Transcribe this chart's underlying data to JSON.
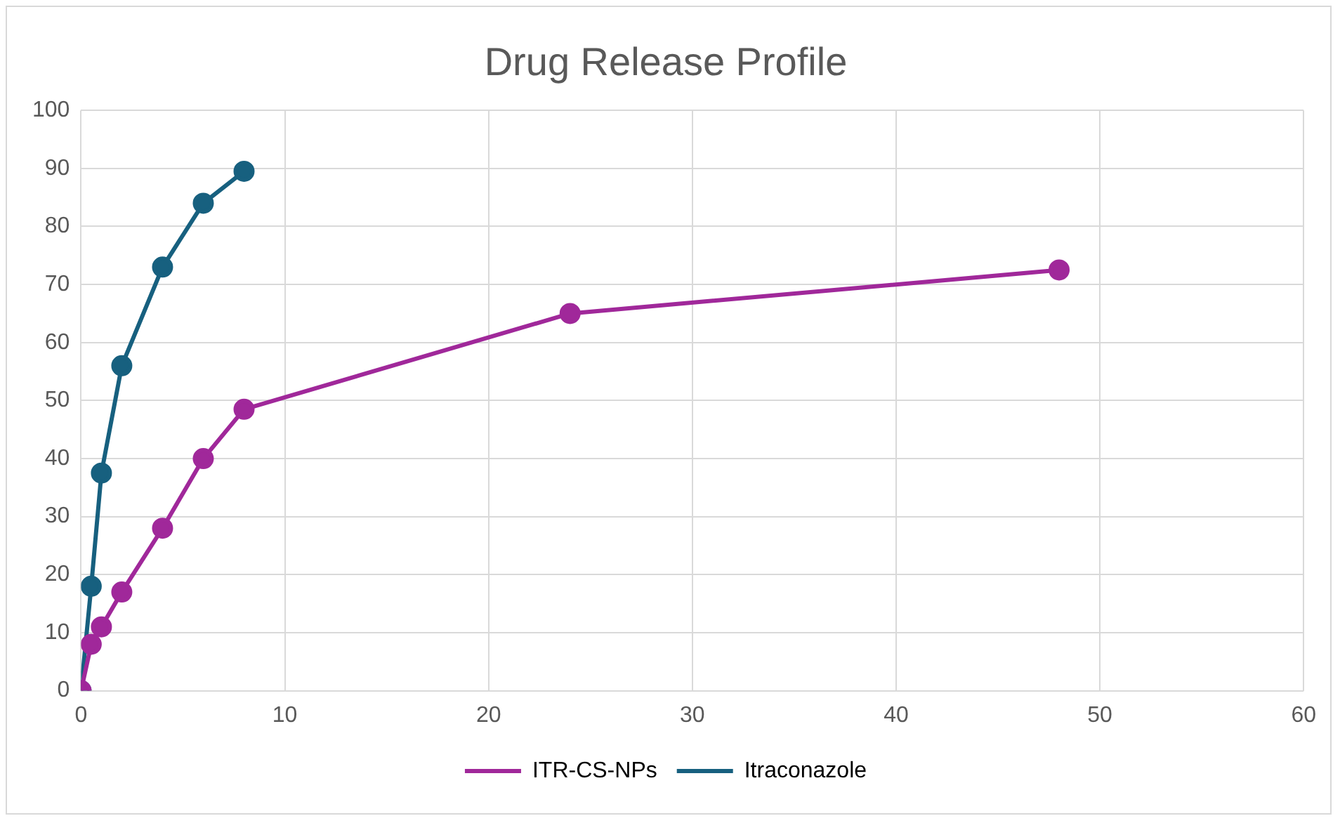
{
  "chart_data": {
    "type": "line",
    "title": "Drug Release Profile",
    "series": [
      {
        "name": "ITR-CS-NPs",
        "color": "#a0289a",
        "x": [
          0,
          0.5,
          1,
          2,
          4,
          6,
          8,
          24,
          48
        ],
        "values": [
          0,
          8,
          11,
          17,
          28,
          40,
          48.5,
          65,
          72.5
        ]
      },
      {
        "name": "Itraconazole",
        "color": "#17607f",
        "x": [
          0,
          0.5,
          1,
          2,
          4,
          6,
          8
        ],
        "values": [
          0,
          18,
          37.5,
          56,
          73,
          84,
          89.5
        ]
      }
    ],
    "xlim": [
      0,
      60
    ],
    "xticks": [
      0,
      10,
      20,
      30,
      40,
      50,
      60
    ],
    "ylim": [
      0,
      100
    ],
    "yticks": [
      0,
      10,
      20,
      30,
      40,
      50,
      60,
      70,
      80,
      90,
      100
    ],
    "grid": true,
    "legend": "bottom",
    "marker": "circle",
    "line_style": "solid"
  }
}
